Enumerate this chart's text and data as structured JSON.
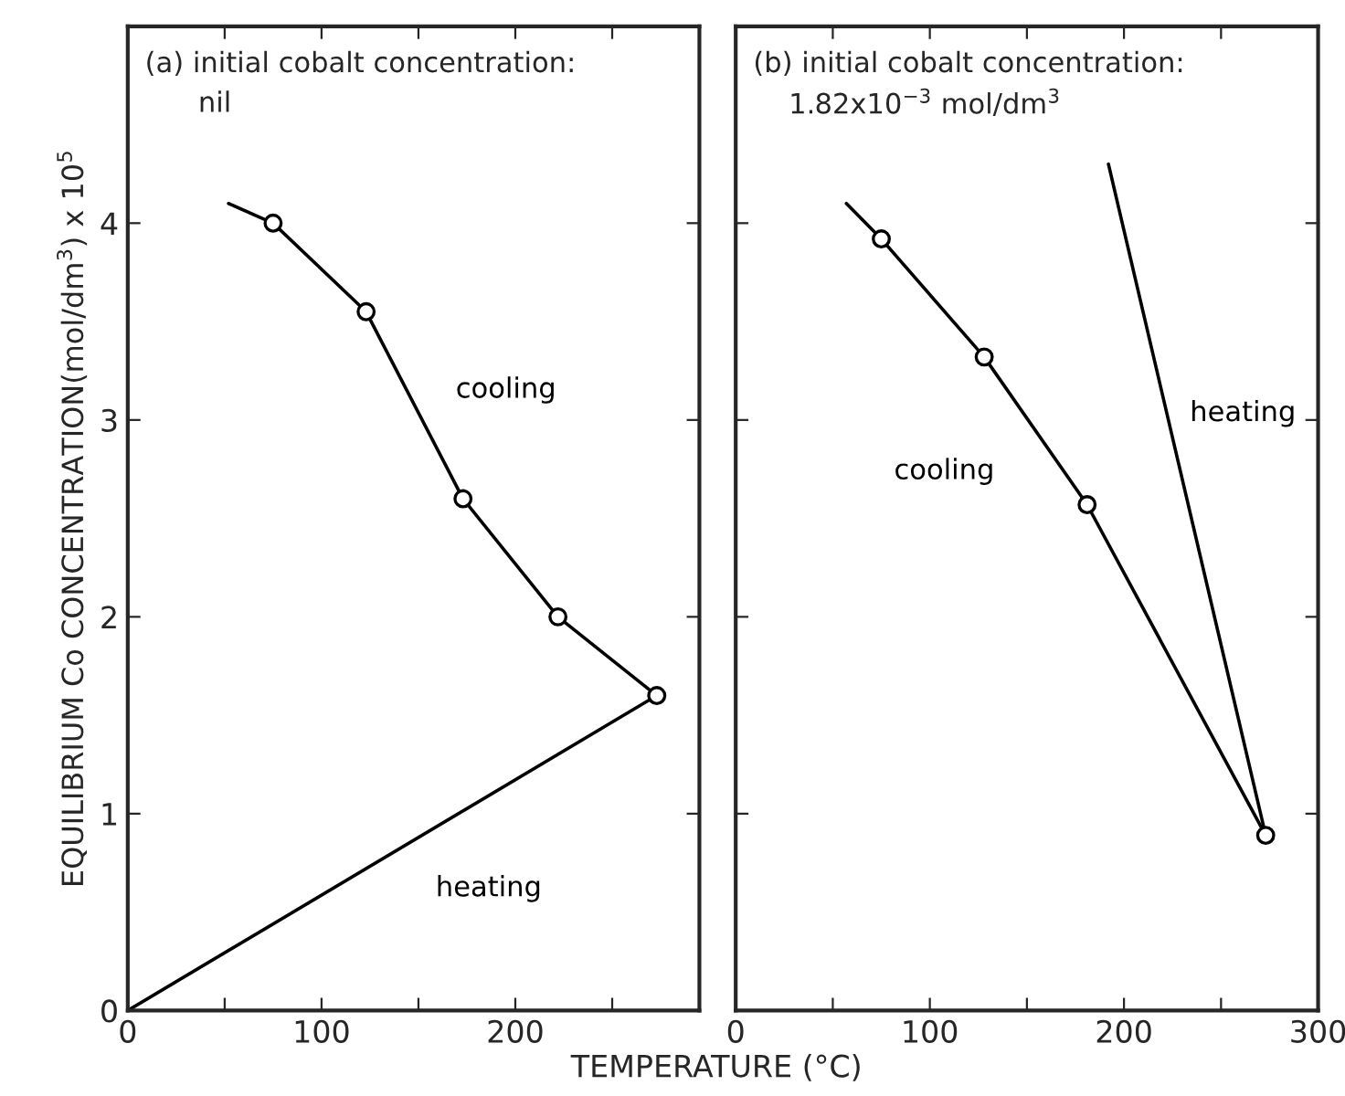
{
  "chart_data": [
    {
      "type": "line",
      "title": "(a) initial cobalt concentration:\n      nil",
      "xlabel": "TEMPERATURE (°C)",
      "ylabel": "EQUILIBRIUM Co CONCENTRATION(mol/dm$^{3}$) x 10$^{5}$",
      "xlim": [
        0,
        295
      ],
      "ylim": [
        0,
        5
      ],
      "xticks": [
        0,
        {
          "value": 50,
          "label": null
        },
        100,
        {
          "value": 150,
          "label": null
        },
        200,
        {
          "value": 250,
          "label": null
        }
      ],
      "yticks": [
        0,
        1,
        2,
        3,
        4
      ],
      "series": [
        {
          "name": "cooling",
          "color": "#000000",
          "marker": "none",
          "x": [
            52,
            75,
            123,
            173,
            222,
            273
          ],
          "values": [
            4.1,
            4.0,
            3.55,
            2.6,
            2.0,
            1.6
          ]
        },
        {
          "name": "heating",
          "color": "#000000",
          "marker": "none",
          "x": [
            0,
            273
          ],
          "values": [
            0,
            1.6
          ]
        },
        {
          "type": "scatter",
          "color": "#000000",
          "marker": "circle",
          "x": [
            75,
            123,
            173,
            222,
            273
          ],
          "values": [
            4.0,
            3.55,
            2.6,
            2.0,
            1.6
          ]
        }
      ],
      "grid": false
    },
    {
      "type": "line",
      "title": "(b) initial cobalt concentration:\n    1.82x10$^{−3}$ mol/dm$^{3}$",
      "xlim": [
        0,
        300
      ],
      "ylim": [
        0,
        5
      ],
      "xticks": [
        0,
        {
          "value": 50,
          "label": null
        },
        100,
        {
          "value": 150,
          "label": null
        },
        200,
        {
          "value": 250,
          "label": null
        },
        300
      ],
      "yticks": [
        0,
        1,
        2,
        3,
        4
      ],
      "tick_labels": "x",
      "series": [
        {
          "name": "cooling",
          "color": "#000000",
          "marker": "none",
          "x": [
            57,
            75,
            128,
            181,
            273
          ],
          "values": [
            4.1,
            3.92,
            3.32,
            2.57,
            0.89
          ]
        },
        {
          "name": "heating",
          "color": "#000000",
          "marker": "none",
          "x": [
            273,
            192
          ],
          "values": [
            0.89,
            4.3
          ]
        },
        {
          "type": "scatter",
          "color": "#000000",
          "marker": "circle",
          "x": [
            75,
            128,
            181,
            273
          ],
          "values": [
            3.92,
            3.32,
            2.57,
            0.89
          ]
        }
      ],
      "grid": false
    }
  ]
}
